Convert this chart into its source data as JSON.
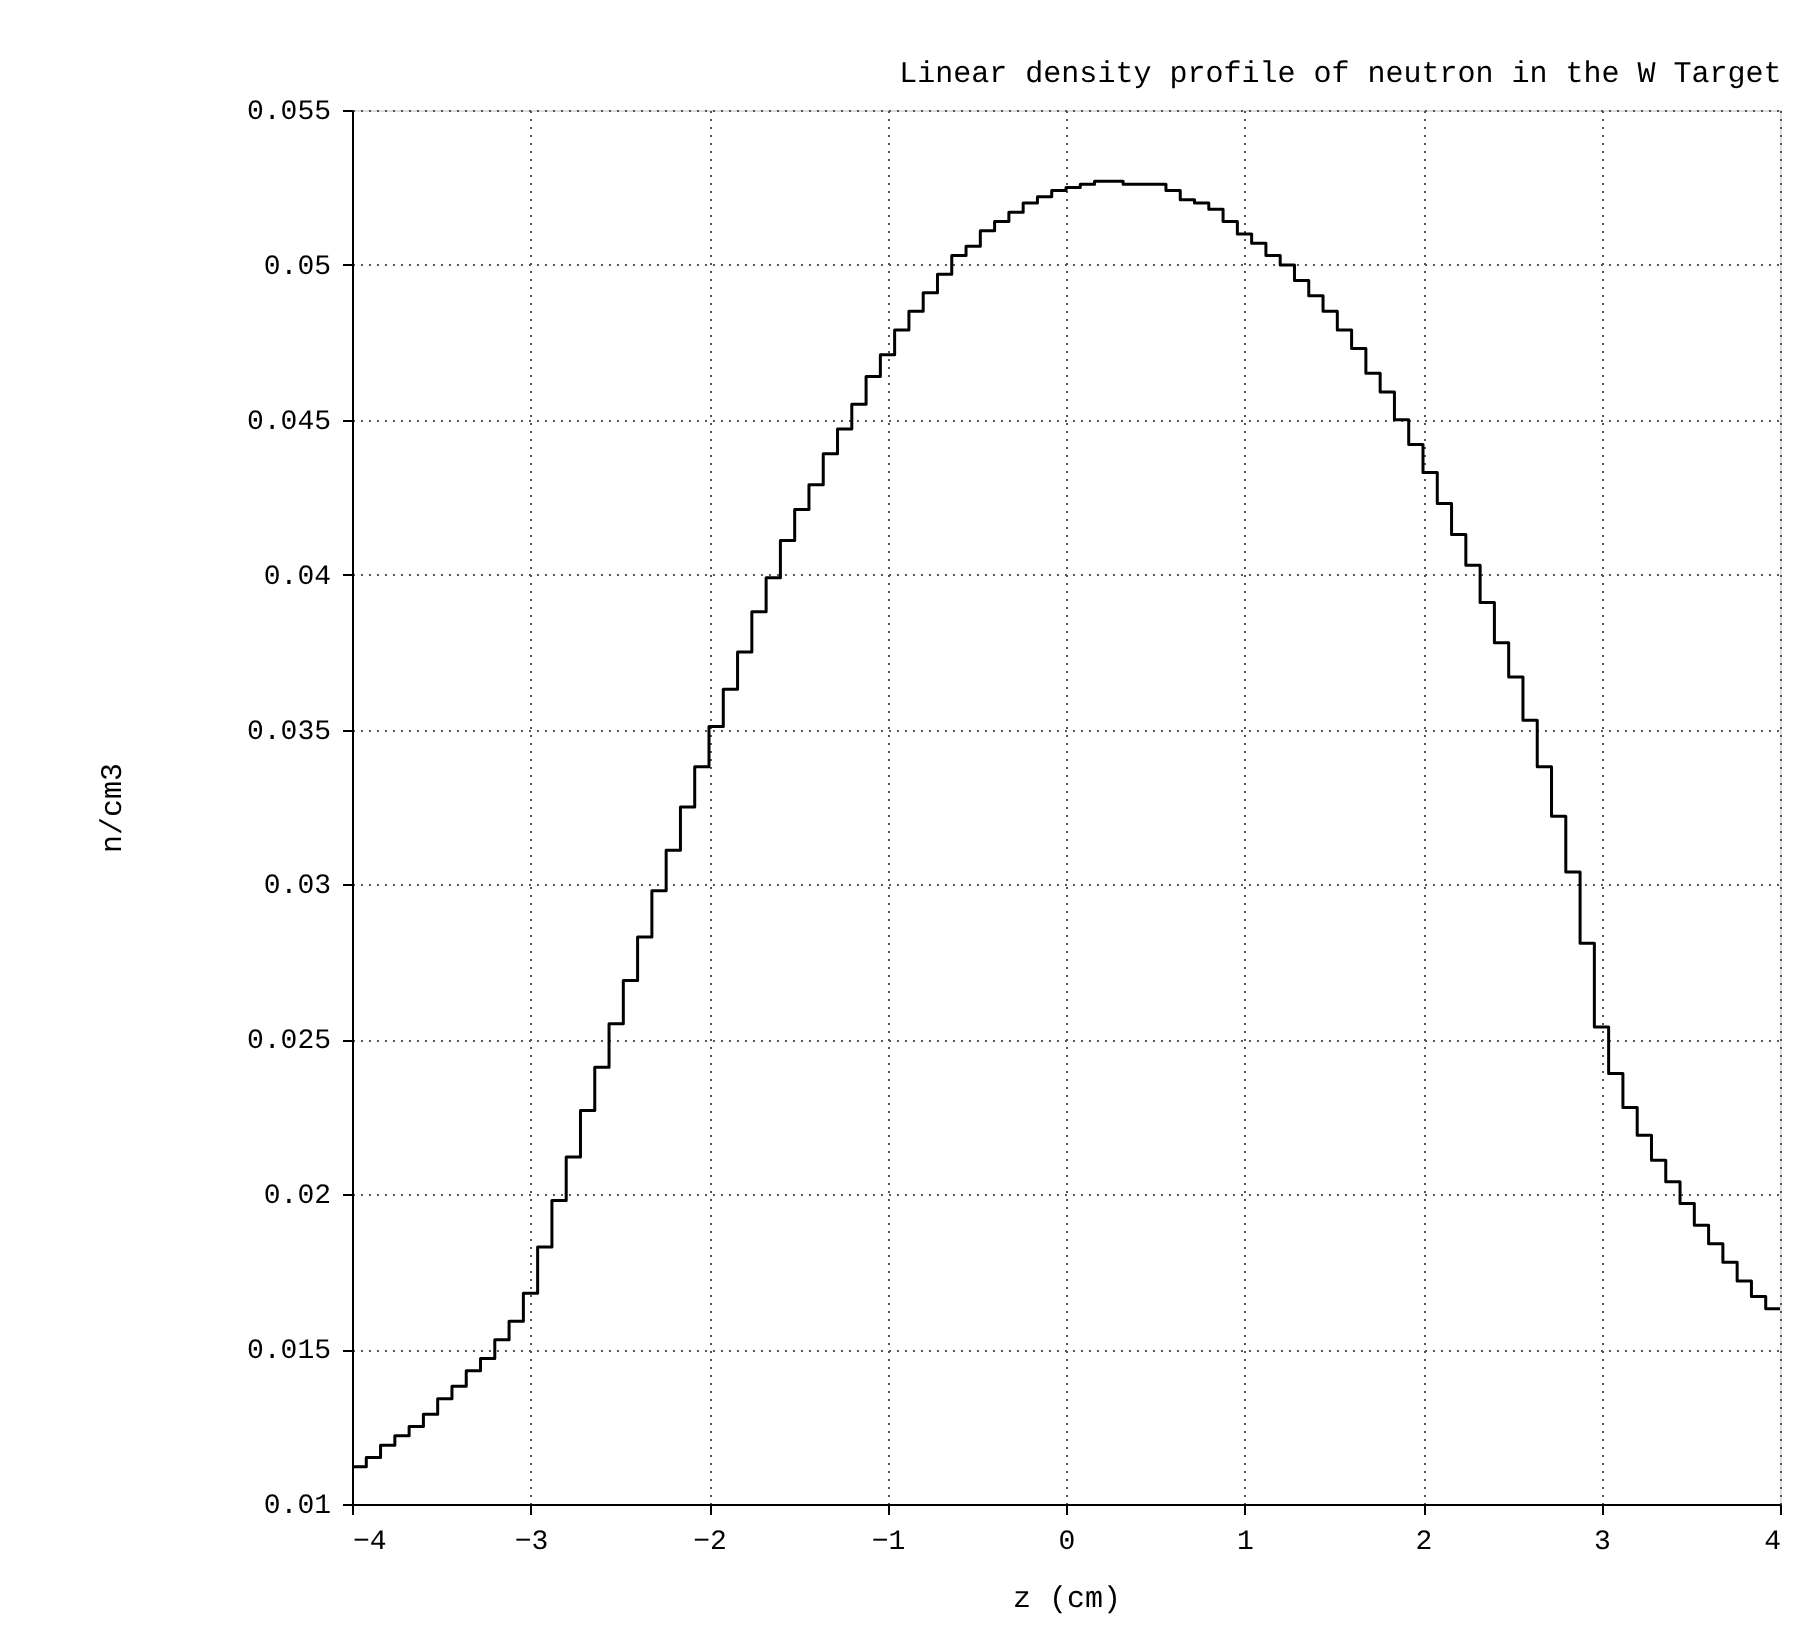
{
  "chart_data": {
    "type": "histogram",
    "title": "Linear density profile of neutron in the W Target",
    "xlabel": "z (cm)",
    "ylabel": "n/cm3",
    "bins": [
      -4,
      -3.92,
      -3.84,
      -3.76,
      -3.68,
      -3.6,
      -3.52,
      -3.44,
      -3.36,
      -3.28,
      -3.2,
      -3.12,
      -3.04,
      -2.96,
      -2.88,
      -2.8,
      -2.72,
      -2.64,
      -2.56,
      -2.48,
      -2.4,
      -2.32,
      -2.24,
      -2.16,
      -2.08,
      -2,
      -1.92,
      -1.84,
      -1.76,
      -1.68,
      -1.6,
      -1.52,
      -1.44,
      -1.36,
      -1.28,
      -1.2,
      -1.12,
      -1.04,
      -0.96,
      -0.88,
      -0.8,
      -0.72,
      -0.64,
      -0.56,
      -0.48,
      -0.4,
      -0.32,
      -0.24,
      -0.16,
      -0.08,
      0,
      0.08,
      0.16,
      0.24,
      0.32,
      0.4,
      0.48,
      0.56,
      0.64,
      0.72,
      0.8,
      0.88,
      0.96,
      1.04,
      1.12,
      1.2,
      1.28,
      1.36,
      1.44,
      1.52,
      1.6,
      1.68,
      1.76,
      1.84,
      1.92,
      2,
      2.08,
      2.16,
      2.24,
      2.32,
      2.4,
      2.48,
      2.56,
      2.64,
      2.72,
      2.8,
      2.88,
      2.96,
      3.04,
      3.12,
      3.2,
      3.28,
      3.36,
      3.44,
      3.52,
      3.6,
      3.68,
      3.76,
      3.84,
      3.92,
      4
    ],
    "values": [
      0.0112,
      0.0115,
      0.0119,
      0.0122,
      0.0125,
      0.0129,
      0.0134,
      0.0138,
      0.0143,
      0.0147,
      0.0153,
      0.0159,
      0.0168,
      0.0183,
      0.0198,
      0.0212,
      0.0227,
      0.0241,
      0.0255,
      0.0269,
      0.0283,
      0.0298,
      0.0311,
      0.0325,
      0.0338,
      0.0351,
      0.0363,
      0.0375,
      0.0388,
      0.0399,
      0.0411,
      0.0421,
      0.0429,
      0.0439,
      0.0447,
      0.0455,
      0.0464,
      0.0471,
      0.0479,
      0.0485,
      0.0491,
      0.0497,
      0.0503,
      0.0506,
      0.0511,
      0.0514,
      0.0517,
      0.052,
      0.0522,
      0.0524,
      0.0525,
      0.0526,
      0.0527,
      0.0527,
      0.0526,
      0.0526,
      0.0526,
      0.0524,
      0.0521,
      0.052,
      0.0518,
      0.0514,
      0.051,
      0.0507,
      0.0503,
      0.05,
      0.0495,
      0.049,
      0.0485,
      0.0479,
      0.0473,
      0.0465,
      0.0459,
      0.045,
      0.0442,
      0.0433,
      0.0423,
      0.0413,
      0.0403,
      0.0391,
      0.0378,
      0.0367,
      0.0353,
      0.0338,
      0.0322,
      0.0304,
      0.0281,
      0.0254,
      0.0239,
      0.0228,
      0.0219,
      0.0211,
      0.0204,
      0.0197,
      0.019,
      0.0184,
      0.0178,
      0.0172,
      0.0167,
      0.0163
    ],
    "color": "#000000",
    "xlim": [
      -4,
      4
    ],
    "xticks": [
      -4,
      -3,
      -2,
      -1,
      0,
      1,
      2,
      3,
      4
    ],
    "ylim": [
      0.01,
      0.055
    ],
    "yticks": [
      0.01,
      0.015,
      0.02,
      0.025,
      0.03,
      0.035,
      0.04,
      0.045,
      0.05,
      0.055
    ],
    "grid": true,
    "line_style": "solid"
  }
}
